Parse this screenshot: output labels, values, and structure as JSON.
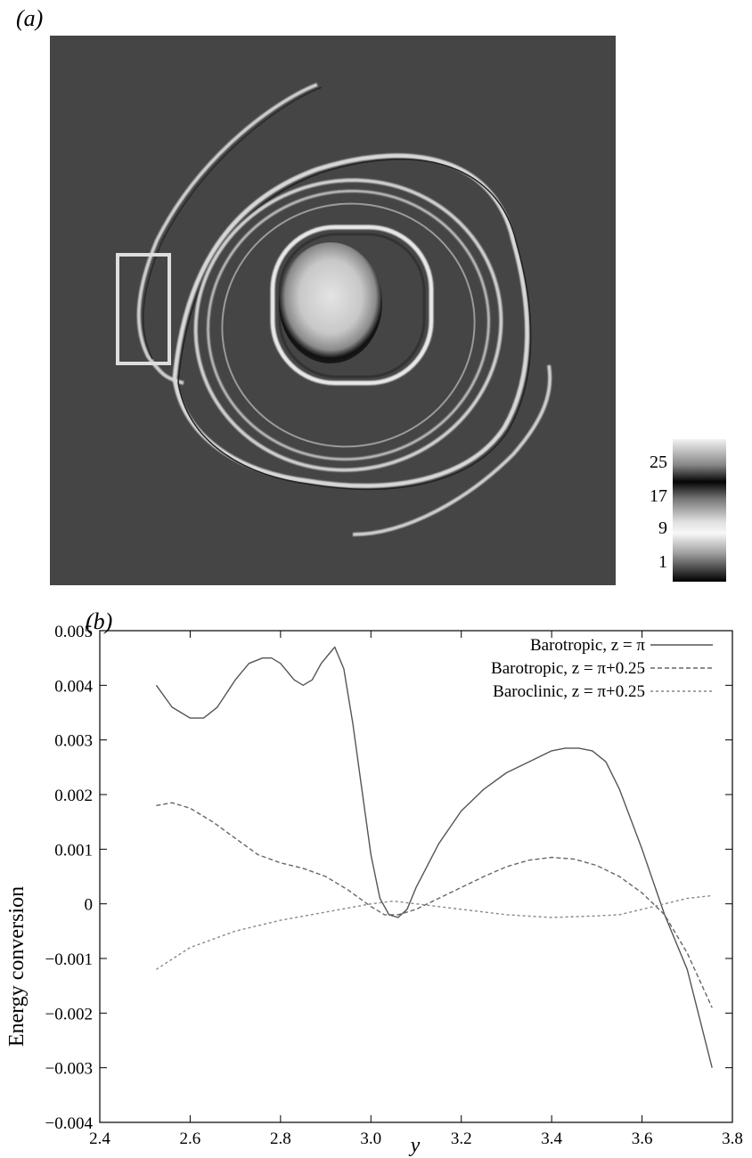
{
  "panels": {
    "a_label": "(a)",
    "b_label": "(b)"
  },
  "field_image": {
    "colorbar": {
      "ticks": [
        "25",
        "17",
        "9",
        "1"
      ]
    }
  },
  "chart_data": {
    "type": "line",
    "xlabel": "y",
    "ylabel": "Energy conversion",
    "xlim": [
      2.4,
      3.8
    ],
    "ylim": [
      -0.004,
      0.005
    ],
    "xticks": [
      "2.4",
      "2.6",
      "2.8",
      "3.0",
      "3.2",
      "3.4",
      "3.6",
      "3.8"
    ],
    "yticks": [
      "0.005",
      "0.004",
      "0.003",
      "0.002",
      "0.001",
      "0",
      "-0.001",
      "-0.002",
      "-0.003",
      "-0.004"
    ],
    "grid": false,
    "legend": "top-right",
    "series": [
      {
        "name": "Barotropic, z = π",
        "style": "solid",
        "color": "#555555",
        "x": [
          2.525,
          2.56,
          2.6,
          2.63,
          2.66,
          2.7,
          2.73,
          2.76,
          2.78,
          2.8,
          2.83,
          2.85,
          2.87,
          2.89,
          2.91,
          2.92,
          2.94,
          2.96,
          2.98,
          3.0,
          3.02,
          3.04,
          3.06,
          3.08,
          3.1,
          3.15,
          3.2,
          3.25,
          3.3,
          3.35,
          3.4,
          3.43,
          3.46,
          3.49,
          3.52,
          3.55,
          3.6,
          3.65,
          3.7,
          3.755
        ],
        "y": [
          0.004,
          0.0036,
          0.0034,
          0.0034,
          0.0036,
          0.0041,
          0.0044,
          0.0045,
          0.0045,
          0.0044,
          0.0041,
          0.004,
          0.0041,
          0.0044,
          0.0046,
          0.0047,
          0.0043,
          0.0033,
          0.0021,
          0.0009,
          0.0001,
          -0.0002,
          -0.00025,
          -0.0001,
          0.0003,
          0.0011,
          0.0017,
          0.0021,
          0.0024,
          0.0026,
          0.0028,
          0.00285,
          0.00285,
          0.0028,
          0.0026,
          0.0021,
          0.001,
          -0.0002,
          -0.0012,
          -0.003
        ]
      },
      {
        "name": "Barotropic, z = π+0.25",
        "style": "dashed",
        "color": "#666666",
        "x": [
          2.525,
          2.56,
          2.6,
          2.65,
          2.7,
          2.75,
          2.8,
          2.85,
          2.9,
          2.95,
          3.0,
          3.03,
          3.06,
          3.08,
          3.1,
          3.15,
          3.2,
          3.25,
          3.3,
          3.35,
          3.4,
          3.45,
          3.5,
          3.55,
          3.6,
          3.65,
          3.7,
          3.755
        ],
        "y": [
          0.0018,
          0.00185,
          0.00175,
          0.0015,
          0.0012,
          0.0009,
          0.00075,
          0.00065,
          0.0005,
          0.00025,
          -5e-05,
          -0.0002,
          -0.0002,
          -0.00015,
          -0.0001,
          0.0001,
          0.0003,
          0.0005,
          0.00068,
          0.0008,
          0.00085,
          0.00082,
          0.0007,
          0.0005,
          0.0002,
          -0.0002,
          -0.0009,
          -0.0019
        ]
      },
      {
        "name": "Baroclinic, z = π+0.25",
        "style": "dotted",
        "color": "#888888",
        "x": [
          2.525,
          2.6,
          2.7,
          2.8,
          2.9,
          3.0,
          3.05,
          3.1,
          3.2,
          3.3,
          3.4,
          3.5,
          3.55,
          3.6,
          3.65,
          3.7,
          3.755
        ],
        "y": [
          -0.0012,
          -0.0008,
          -0.0005,
          -0.0003,
          -0.00015,
          0.0,
          5e-05,
          0.0,
          -0.0001,
          -0.0002,
          -0.00025,
          -0.00022,
          -0.0002,
          -0.0001,
          0.0,
          0.0001,
          0.00015
        ]
      }
    ]
  }
}
